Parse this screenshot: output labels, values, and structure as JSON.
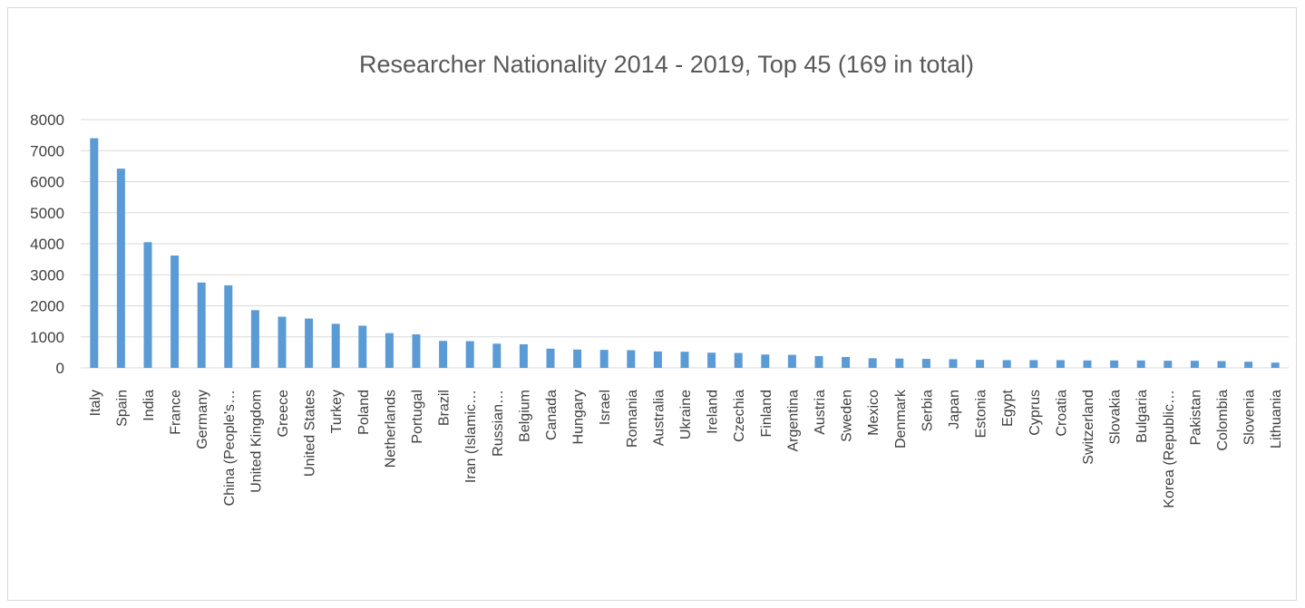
{
  "chart_data": {
    "type": "bar",
    "title": "Researcher Nationality 2014 - 2019, Top 45 (169 in total)",
    "xlabel": "",
    "ylabel": "",
    "ylim": [
      0,
      8000
    ],
    "yticks": [
      "0",
      "1000",
      "2000",
      "3000",
      "4000",
      "5000",
      "6000",
      "7000",
      "8000"
    ],
    "grid": true,
    "legend": "none",
    "bar_color": "#5b9bd5",
    "categories": [
      "Italy",
      "Spain",
      "India",
      "France",
      "Germany",
      "China (People's…",
      "United Kingdom",
      "Greece",
      "United States",
      "Turkey",
      "Poland",
      "Netherlands",
      "Portugal",
      "Brazil",
      "Iran (Islamic…",
      "Russian…",
      "Belgium",
      "Canada",
      "Hungary",
      "Israel",
      "Romania",
      "Australia",
      "Ukraine",
      "Ireland",
      "Czechia",
      "Finland",
      "Argentina",
      "Austria",
      "Sweden",
      "Mexico",
      "Denmark",
      "Serbia",
      "Japan",
      "Estonia",
      "Egypt",
      "Cyprus",
      "Croatia",
      "Switzerland",
      "Slovakia",
      "Bulgaria",
      "Korea (Republic…",
      "Pakistan",
      "Colombia",
      "Slovenia",
      "Lithuania"
    ],
    "values": [
      7400,
      6420,
      4050,
      3620,
      2750,
      2660,
      1860,
      1650,
      1590,
      1420,
      1360,
      1120,
      1080,
      870,
      860,
      780,
      760,
      620,
      590,
      580,
      570,
      530,
      520,
      490,
      480,
      430,
      420,
      380,
      350,
      310,
      300,
      290,
      280,
      260,
      250,
      250,
      250,
      240,
      240,
      240,
      230,
      230,
      220,
      200,
      170
    ]
  }
}
